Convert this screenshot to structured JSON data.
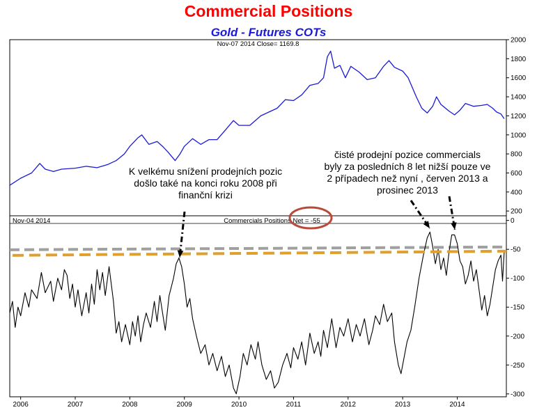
{
  "title": "Commercial Positions",
  "subtitle": "Gold - Futures COTs",
  "chart_data": [
    {
      "type": "line",
      "header": "Nov-07 2014  Close= 1169.8",
      "ylim": [
        150,
        2000
      ],
      "yticks": [
        200,
        400,
        600,
        800,
        1000,
        1200,
        1400,
        1600,
        1800,
        2000
      ],
      "series": [
        {
          "color": "#1a1ad8",
          "points": [
            [
              2005.8,
              470
            ],
            [
              2006.0,
              545
            ],
            [
              2006.2,
              600
            ],
            [
              2006.35,
              700
            ],
            [
              2006.45,
              640
            ],
            [
              2006.6,
              615
            ],
            [
              2006.75,
              640
            ],
            [
              2007.0,
              650
            ],
            [
              2007.2,
              670
            ],
            [
              2007.4,
              655
            ],
            [
              2007.6,
              690
            ],
            [
              2007.75,
              730
            ],
            [
              2007.9,
              800
            ],
            [
              2008.0,
              880
            ],
            [
              2008.15,
              970
            ],
            [
              2008.22,
              1000
            ],
            [
              2008.35,
              900
            ],
            [
              2008.5,
              930
            ],
            [
              2008.6,
              880
            ],
            [
              2008.7,
              820
            ],
            [
              2008.83,
              730
            ],
            [
              2008.92,
              800
            ],
            [
              2009.0,
              880
            ],
            [
              2009.15,
              960
            ],
            [
              2009.3,
              900
            ],
            [
              2009.45,
              950
            ],
            [
              2009.6,
              950
            ],
            [
              2009.75,
              1050
            ],
            [
              2009.9,
              1150
            ],
            [
              2010.0,
              1100
            ],
            [
              2010.2,
              1100
            ],
            [
              2010.4,
              1200
            ],
            [
              2010.55,
              1240
            ],
            [
              2010.7,
              1280
            ],
            [
              2010.85,
              1370
            ],
            [
              2011.0,
              1360
            ],
            [
              2011.15,
              1420
            ],
            [
              2011.3,
              1520
            ],
            [
              2011.45,
              1540
            ],
            [
              2011.55,
              1600
            ],
            [
              2011.62,
              1820
            ],
            [
              2011.68,
              1880
            ],
            [
              2011.75,
              1700
            ],
            [
              2011.85,
              1730
            ],
            [
              2011.95,
              1600
            ],
            [
              2012.05,
              1720
            ],
            [
              2012.2,
              1660
            ],
            [
              2012.35,
              1580
            ],
            [
              2012.5,
              1600
            ],
            [
              2012.65,
              1720
            ],
            [
              2012.75,
              1780
            ],
            [
              2012.85,
              1710
            ],
            [
              2013.0,
              1670
            ],
            [
              2013.1,
              1600
            ],
            [
              2013.25,
              1400
            ],
            [
              2013.35,
              1280
            ],
            [
              2013.45,
              1230
            ],
            [
              2013.55,
              1300
            ],
            [
              2013.62,
              1400
            ],
            [
              2013.7,
              1320
            ],
            [
              2013.85,
              1250
            ],
            [
              2013.95,
              1210
            ],
            [
              2014.05,
              1260
            ],
            [
              2014.15,
              1330
            ],
            [
              2014.3,
              1300
            ],
            [
              2014.45,
              1310
            ],
            [
              2014.55,
              1320
            ],
            [
              2014.65,
              1280
            ],
            [
              2014.72,
              1240
            ],
            [
              2014.8,
              1220
            ],
            [
              2014.86,
              1170
            ]
          ]
        }
      ]
    },
    {
      "type": "line",
      "header": "Nov-04 2014",
      "label": "Commercials Positions Net = -55",
      "ylim": [
        -305,
        8
      ],
      "yticks": [
        0,
        -50,
        -100,
        -150,
        -200,
        -250,
        -300
      ],
      "xticks": [
        "2006",
        "2007",
        "2008",
        "2009",
        "2010",
        "2011",
        "2012",
        "2013",
        "2014"
      ],
      "reference_level": -58,
      "series": [
        {
          "color": "#000000",
          "points": [
            [
              2005.8,
              -160
            ],
            [
              2005.85,
              -140
            ],
            [
              2005.9,
              -185
            ],
            [
              2005.95,
              -150
            ],
            [
              2006.0,
              -165
            ],
            [
              2006.08,
              -125
            ],
            [
              2006.15,
              -150
            ],
            [
              2006.2,
              -120
            ],
            [
              2006.3,
              -135
            ],
            [
              2006.38,
              -90
            ],
            [
              2006.45,
              -125
            ],
            [
              2006.55,
              -105
            ],
            [
              2006.6,
              -140
            ],
            [
              2006.68,
              -100
            ],
            [
              2006.75,
              -120
            ],
            [
              2006.8,
              -85
            ],
            [
              2006.85,
              -95
            ],
            [
              2006.9,
              -135
            ],
            [
              2006.95,
              -110
            ],
            [
              2007.0,
              -150
            ],
            [
              2007.05,
              -120
            ],
            [
              2007.12,
              -165
            ],
            [
              2007.2,
              -125
            ],
            [
              2007.25,
              -160
            ],
            [
              2007.3,
              -110
            ],
            [
              2007.35,
              -145
            ],
            [
              2007.4,
              -85
            ],
            [
              2007.45,
              -120
            ],
            [
              2007.5,
              -90
            ],
            [
              2007.55,
              -130
            ],
            [
              2007.62,
              -80
            ],
            [
              2007.7,
              -140
            ],
            [
              2007.75,
              -195
            ],
            [
              2007.8,
              -175
            ],
            [
              2007.85,
              -210
            ],
            [
              2007.92,
              -180
            ],
            [
              2008.0,
              -215
            ],
            [
              2008.05,
              -175
            ],
            [
              2008.1,
              -200
            ],
            [
              2008.15,
              -165
            ],
            [
              2008.2,
              -210
            ],
            [
              2008.25,
              -180
            ],
            [
              2008.3,
              -160
            ],
            [
              2008.38,
              -185
            ],
            [
              2008.45,
              -140
            ],
            [
              2008.5,
              -175
            ],
            [
              2008.55,
              -130
            ],
            [
              2008.6,
              -160
            ],
            [
              2008.65,
              -190
            ],
            [
              2008.72,
              -130
            ],
            [
              2008.8,
              -100
            ],
            [
              2008.85,
              -75
            ],
            [
              2008.9,
              -65
            ],
            [
              2008.95,
              -80
            ],
            [
              2009.0,
              -110
            ],
            [
              2009.05,
              -150
            ],
            [
              2009.1,
              -135
            ],
            [
              2009.15,
              -170
            ],
            [
              2009.22,
              -200
            ],
            [
              2009.3,
              -230
            ],
            [
              2009.38,
              -215
            ],
            [
              2009.45,
              -250
            ],
            [
              2009.52,
              -230
            ],
            [
              2009.6,
              -260
            ],
            [
              2009.68,
              -235
            ],
            [
              2009.75,
              -270
            ],
            [
              2009.82,
              -250
            ],
            [
              2009.9,
              -290
            ],
            [
              2009.95,
              -300
            ],
            [
              2010.02,
              -270
            ],
            [
              2010.08,
              -230
            ],
            [
              2010.15,
              -250
            ],
            [
              2010.22,
              -215
            ],
            [
              2010.3,
              -240
            ],
            [
              2010.35,
              -210
            ],
            [
              2010.42,
              -250
            ],
            [
              2010.5,
              -275
            ],
            [
              2010.58,
              -260
            ],
            [
              2010.65,
              -290
            ],
            [
              2010.72,
              -280
            ],
            [
              2010.8,
              -250
            ],
            [
              2010.88,
              -230
            ],
            [
              2010.95,
              -255
            ],
            [
              2011.0,
              -220
            ],
            [
              2011.08,
              -240
            ],
            [
              2011.15,
              -210
            ],
            [
              2011.22,
              -250
            ],
            [
              2011.3,
              -195
            ],
            [
              2011.38,
              -230
            ],
            [
              2011.45,
              -210
            ],
            [
              2011.5,
              -235
            ],
            [
              2011.55,
              -190
            ],
            [
              2011.62,
              -220
            ],
            [
              2011.7,
              -170
            ],
            [
              2011.78,
              -220
            ],
            [
              2011.85,
              -185
            ],
            [
              2011.92,
              -200
            ],
            [
              2012.0,
              -170
            ],
            [
              2012.08,
              -210
            ],
            [
              2012.15,
              -180
            ],
            [
              2012.22,
              -200
            ],
            [
              2012.3,
              -170
            ],
            [
              2012.38,
              -215
            ],
            [
              2012.45,
              -190
            ],
            [
              2012.5,
              -165
            ],
            [
              2012.58,
              -180
            ],
            [
              2012.65,
              -145
            ],
            [
              2012.72,
              -175
            ],
            [
              2012.8,
              -160
            ],
            [
              2012.85,
              -210
            ],
            [
              2012.92,
              -250
            ],
            [
              2012.97,
              -265
            ],
            [
              2013.02,
              -240
            ],
            [
              2013.08,
              -210
            ],
            [
              2013.15,
              -190
            ],
            [
              2013.22,
              -150
            ],
            [
              2013.3,
              -100
            ],
            [
              2013.38,
              -60
            ],
            [
              2013.45,
              -30
            ],
            [
              2013.5,
              -20
            ],
            [
              2013.55,
              -45
            ],
            [
              2013.6,
              -75
            ],
            [
              2013.65,
              -50
            ],
            [
              2013.7,
              -85
            ],
            [
              2013.75,
              -65
            ],
            [
              2013.8,
              -95
            ],
            [
              2013.85,
              -55
            ],
            [
              2013.9,
              -25
            ],
            [
              2013.95,
              -25
            ],
            [
              2014.0,
              -40
            ],
            [
              2014.05,
              -70
            ],
            [
              2014.1,
              -80
            ],
            [
              2014.15,
              -110
            ],
            [
              2014.2,
              -95
            ],
            [
              2014.25,
              -70
            ],
            [
              2014.3,
              -105
            ],
            [
              2014.35,
              -85
            ],
            [
              2014.4,
              -120
            ],
            [
              2014.45,
              -155
            ],
            [
              2014.5,
              -130
            ],
            [
              2014.55,
              -165
            ],
            [
              2014.6,
              -145
            ],
            [
              2014.65,
              -115
            ],
            [
              2014.7,
              -85
            ],
            [
              2014.75,
              -70
            ],
            [
              2014.8,
              -60
            ],
            [
              2014.83,
              -105
            ],
            [
              2014.86,
              -55
            ]
          ]
        }
      ]
    }
  ],
  "annotations": {
    "left": "K velkému snížení prodejních pozic\ndošlo také na konci roku 2008 při\nfinanční krizi",
    "right": "čisté prodejní pozice commercials\nbyly za posledních 8 let nižší pouze ve\n2 případech než nyní , červen 2013 a\nprosinec 2013"
  },
  "colors": {
    "title": "#ff0000",
    "subtitle": "#1a1ad8",
    "gold_line": "#1a1ad8",
    "cot_line": "#000000",
    "dashed_gray": "#a0a0a0",
    "dashed_orange": "#e0a030",
    "ellipse": "#b84a3a"
  }
}
